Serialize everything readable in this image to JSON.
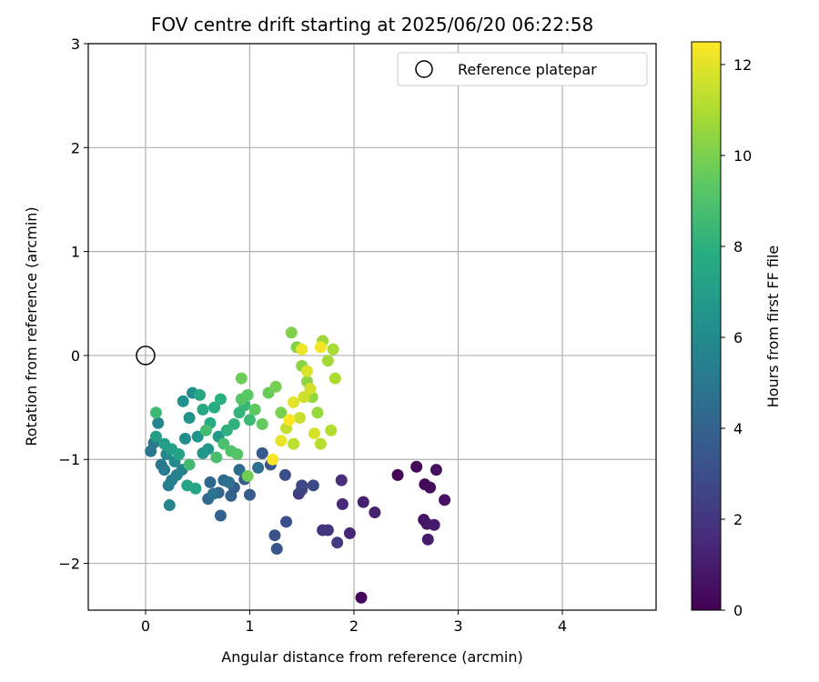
{
  "chart_data": {
    "type": "scatter",
    "title": "FOV centre drift starting at 2025/06/20 06:22:58",
    "xlabel": "Angular distance from reference (arcmin)",
    "ylabel": "Rotation from reference (arcmin)",
    "xlim": [
      -0.55,
      4.9
    ],
    "ylim": [
      -2.45,
      3.0
    ],
    "xticks": [
      0,
      1,
      2,
      3,
      4
    ],
    "xtick_labels": [
      "0",
      "1",
      "2",
      "3",
      "4"
    ],
    "yticks": [
      -2,
      -1,
      0,
      1,
      2,
      3
    ],
    "ytick_labels": [
      "−2",
      "−1",
      "0",
      "1",
      "2",
      "3"
    ],
    "grid": true,
    "legend": {
      "position": "top-right",
      "entries": [
        "Reference platepar"
      ]
    },
    "colorbar": {
      "label": "Hours from first FF file",
      "colormap": "viridis",
      "range": [
        0,
        12.5
      ],
      "ticks": [
        0,
        2,
        4,
        6,
        8,
        10,
        12
      ],
      "tick_labels": [
        "0",
        "2",
        "4",
        "6",
        "8",
        "10",
        "12"
      ]
    },
    "reference_point": {
      "x": 0,
      "y": 0,
      "label": "Reference platepar"
    },
    "points": [
      {
        "x": 2.07,
        "y": -2.33,
        "c": 0.2
      },
      {
        "x": 2.42,
        "y": -1.15,
        "c": 0.1
      },
      {
        "x": 2.6,
        "y": -1.07,
        "c": 0.2
      },
      {
        "x": 2.68,
        "y": -1.24,
        "c": 0.3
      },
      {
        "x": 2.73,
        "y": -1.27,
        "c": 0.4
      },
      {
        "x": 2.79,
        "y": -1.1,
        "c": 0.5
      },
      {
        "x": 2.87,
        "y": -1.39,
        "c": 0.6
      },
      {
        "x": 2.67,
        "y": -1.58,
        "c": 0.7
      },
      {
        "x": 2.7,
        "y": -1.62,
        "c": 0.8
      },
      {
        "x": 2.77,
        "y": -1.63,
        "c": 0.9
      },
      {
        "x": 2.71,
        "y": -1.77,
        "c": 1.0
      },
      {
        "x": 2.09,
        "y": -1.41,
        "c": 1.1
      },
      {
        "x": 2.2,
        "y": -1.51,
        "c": 1.2
      },
      {
        "x": 1.96,
        "y": -1.71,
        "c": 1.3
      },
      {
        "x": 1.89,
        "y": -1.43,
        "c": 1.5
      },
      {
        "x": 1.88,
        "y": -1.2,
        "c": 1.7
      },
      {
        "x": 1.7,
        "y": -1.68,
        "c": 1.9
      },
      {
        "x": 1.75,
        "y": -1.68,
        "c": 2.0
      },
      {
        "x": 1.84,
        "y": -1.8,
        "c": 2.2
      },
      {
        "x": 1.47,
        "y": -1.33,
        "c": 2.3
      },
      {
        "x": 1.5,
        "y": -1.29,
        "c": 2.5
      },
      {
        "x": 1.5,
        "y": -1.25,
        "c": 2.7
      },
      {
        "x": 1.61,
        "y": -1.25,
        "c": 2.8
      },
      {
        "x": 1.34,
        "y": -1.15,
        "c": 3.0
      },
      {
        "x": 1.35,
        "y": -1.6,
        "c": 3.1
      },
      {
        "x": 1.24,
        "y": -1.73,
        "c": 3.2
      },
      {
        "x": 1.26,
        "y": -1.86,
        "c": 3.3
      },
      {
        "x": 1.2,
        "y": -1.05,
        "c": 3.4
      },
      {
        "x": 1.12,
        "y": -0.94,
        "c": 3.5
      },
      {
        "x": 1.0,
        "y": -1.34,
        "c": 3.6
      },
      {
        "x": 0.95,
        "y": -1.19,
        "c": 3.7
      },
      {
        "x": 0.85,
        "y": -1.27,
        "c": 3.8
      },
      {
        "x": 0.82,
        "y": -1.35,
        "c": 3.9
      },
      {
        "x": 0.72,
        "y": -1.54,
        "c": 4.0
      },
      {
        "x": 0.7,
        "y": -1.32,
        "c": 4.1
      },
      {
        "x": 0.62,
        "y": -1.22,
        "c": 4.2
      },
      {
        "x": 0.6,
        "y": -1.38,
        "c": 4.3
      },
      {
        "x": 0.75,
        "y": -1.2,
        "c": 4.4
      },
      {
        "x": 0.9,
        "y": -1.1,
        "c": 4.5
      },
      {
        "x": 1.08,
        "y": -1.08,
        "c": 4.6
      },
      {
        "x": 0.8,
        "y": -1.22,
        "c": 4.7
      },
      {
        "x": 0.65,
        "y": -1.33,
        "c": 4.8
      },
      {
        "x": 0.05,
        "y": -0.92,
        "c": 4.9
      },
      {
        "x": 0.08,
        "y": -0.84,
        "c": 5.0
      },
      {
        "x": 0.15,
        "y": -1.05,
        "c": 5.1
      },
      {
        "x": 0.18,
        "y": -1.1,
        "c": 5.2
      },
      {
        "x": 0.22,
        "y": -1.25,
        "c": 5.3
      },
      {
        "x": 0.25,
        "y": -1.2,
        "c": 5.4
      },
      {
        "x": 0.3,
        "y": -1.15,
        "c": 5.5
      },
      {
        "x": 0.35,
        "y": -1.1,
        "c": 5.6
      },
      {
        "x": 0.23,
        "y": -1.44,
        "c": 5.7
      },
      {
        "x": 0.12,
        "y": -0.65,
        "c": 5.8
      },
      {
        "x": 0.2,
        "y": -0.95,
        "c": 5.9
      },
      {
        "x": 0.28,
        "y": -1.02,
        "c": 6.0
      },
      {
        "x": 0.38,
        "y": -0.8,
        "c": 6.1
      },
      {
        "x": 0.45,
        "y": -0.36,
        "c": 6.2
      },
      {
        "x": 0.36,
        "y": -0.44,
        "c": 6.3
      },
      {
        "x": 0.42,
        "y": -0.6,
        "c": 6.4
      },
      {
        "x": 0.5,
        "y": -0.78,
        "c": 6.5
      },
      {
        "x": 0.55,
        "y": -0.94,
        "c": 6.6
      },
      {
        "x": 0.6,
        "y": -0.9,
        "c": 6.7
      },
      {
        "x": 0.7,
        "y": -0.78,
        "c": 6.8
      },
      {
        "x": 0.1,
        "y": -0.78,
        "c": 6.9
      },
      {
        "x": 0.18,
        "y": -0.85,
        "c": 7.0
      },
      {
        "x": 0.25,
        "y": -0.9,
        "c": 7.1
      },
      {
        "x": 0.32,
        "y": -0.95,
        "c": 7.2
      },
      {
        "x": 0.4,
        "y": -1.25,
        "c": 7.3
      },
      {
        "x": 0.48,
        "y": -1.28,
        "c": 7.4
      },
      {
        "x": 0.52,
        "y": -0.38,
        "c": 7.5
      },
      {
        "x": 0.55,
        "y": -0.52,
        "c": 7.6
      },
      {
        "x": 0.62,
        "y": -0.65,
        "c": 7.7
      },
      {
        "x": 0.66,
        "y": -0.5,
        "c": 7.8
      },
      {
        "x": 0.72,
        "y": -0.42,
        "c": 7.9
      },
      {
        "x": 0.78,
        "y": -0.72,
        "c": 8.0
      },
      {
        "x": 0.85,
        "y": -0.66,
        "c": 8.1
      },
      {
        "x": 0.9,
        "y": -0.55,
        "c": 8.2
      },
      {
        "x": 0.95,
        "y": -0.48,
        "c": 8.3
      },
      {
        "x": 1.0,
        "y": -0.62,
        "c": 8.4
      },
      {
        "x": 0.1,
        "y": -0.55,
        "c": 8.5
      },
      {
        "x": 0.42,
        "y": -1.05,
        "c": 8.6
      },
      {
        "x": 0.58,
        "y": -0.72,
        "c": 8.7
      },
      {
        "x": 0.68,
        "y": -0.98,
        "c": 8.8
      },
      {
        "x": 0.75,
        "y": -0.85,
        "c": 8.9
      },
      {
        "x": 0.82,
        "y": -0.92,
        "c": 9.0
      },
      {
        "x": 0.88,
        "y": -0.95,
        "c": 9.1
      },
      {
        "x": 0.92,
        "y": -0.42,
        "c": 9.2
      },
      {
        "x": 0.98,
        "y": -0.38,
        "c": 9.3
      },
      {
        "x": 1.05,
        "y": -0.52,
        "c": 9.4
      },
      {
        "x": 1.12,
        "y": -0.66,
        "c": 9.5
      },
      {
        "x": 1.18,
        "y": -0.36,
        "c": 9.6
      },
      {
        "x": 0.92,
        "y": -0.22,
        "c": 9.7
      },
      {
        "x": 0.98,
        "y": -1.16,
        "c": 9.8
      },
      {
        "x": 1.25,
        "y": -0.3,
        "c": 9.9
      },
      {
        "x": 1.3,
        "y": -0.55,
        "c": 10.0
      },
      {
        "x": 1.4,
        "y": 0.22,
        "c": 10.1
      },
      {
        "x": 1.45,
        "y": 0.08,
        "c": 10.2
      },
      {
        "x": 1.5,
        "y": -0.1,
        "c": 10.3
      },
      {
        "x": 1.55,
        "y": -0.25,
        "c": 10.4
      },
      {
        "x": 1.6,
        "y": -0.4,
        "c": 10.5
      },
      {
        "x": 1.65,
        "y": -0.55,
        "c": 10.6
      },
      {
        "x": 1.7,
        "y": 0.14,
        "c": 10.7
      },
      {
        "x": 1.75,
        "y": -0.05,
        "c": 10.8
      },
      {
        "x": 1.8,
        "y": 0.06,
        "c": 10.9
      },
      {
        "x": 1.82,
        "y": -0.22,
        "c": 11.0
      },
      {
        "x": 1.78,
        "y": -0.72,
        "c": 11.1
      },
      {
        "x": 1.68,
        "y": -0.85,
        "c": 11.2
      },
      {
        "x": 1.42,
        "y": -0.85,
        "c": 11.3
      },
      {
        "x": 1.35,
        "y": -0.7,
        "c": 11.4
      },
      {
        "x": 1.48,
        "y": -0.6,
        "c": 11.5
      },
      {
        "x": 1.52,
        "y": -0.4,
        "c": 11.6
      },
      {
        "x": 1.58,
        "y": -0.32,
        "c": 11.7
      },
      {
        "x": 1.62,
        "y": -0.75,
        "c": 11.8
      },
      {
        "x": 1.55,
        "y": -0.15,
        "c": 11.9
      },
      {
        "x": 1.42,
        "y": -0.45,
        "c": 12.0
      },
      {
        "x": 1.3,
        "y": -0.82,
        "c": 12.1
      },
      {
        "x": 1.5,
        "y": 0.06,
        "c": 12.2
      },
      {
        "x": 1.68,
        "y": 0.08,
        "c": 12.3
      },
      {
        "x": 1.22,
        "y": -1.0,
        "c": 12.4
      },
      {
        "x": 1.38,
        "y": -0.62,
        "c": 12.5
      }
    ]
  }
}
